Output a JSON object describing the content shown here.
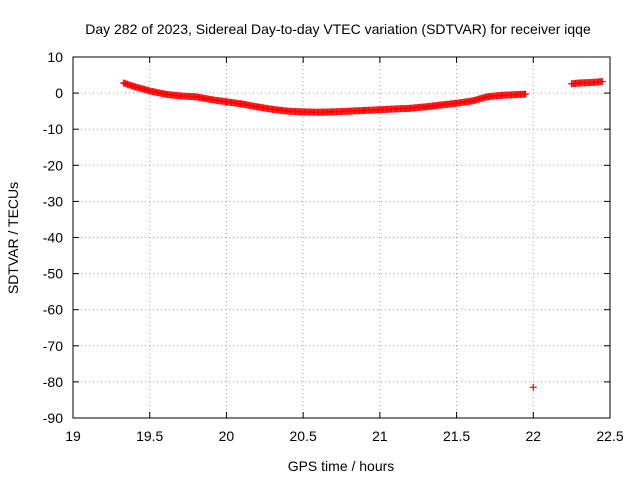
{
  "chart_data": {
    "type": "scatter",
    "title": "Day 282 of 2023, Sidereal Day-to-day VTEC variation (SDTVAR) for receiver iqqe",
    "xlabel": "GPS time / hours",
    "ylabel": "SDTVAR / TECUs",
    "xlim": [
      19,
      22.5
    ],
    "ylim": [
      -90,
      10
    ],
    "xticks": [
      "19",
      "19.5",
      "20",
      "20.5",
      "21",
      "21.5",
      "22",
      "22.5"
    ],
    "yticks": [
      "10",
      "0",
      "-10",
      "-20",
      "-30",
      "-40",
      "-50",
      "-60",
      "-70",
      "-80",
      "-90"
    ],
    "grid": true,
    "marker": "+",
    "color": "#ff0000",
    "series": [
      {
        "name": "SDTVAR",
        "segments": [
          {
            "x": [
              19.33,
              19.4,
              19.5,
              19.6,
              19.7,
              19.8,
              19.9,
              20.0,
              20.1,
              20.2,
              20.3,
              20.4,
              20.5,
              20.6,
              20.7,
              20.8,
              20.9,
              21.0,
              21.1,
              21.2,
              21.3,
              21.4,
              21.5,
              21.6,
              21.7,
              21.8,
              21.9,
              21.95
            ],
            "y": [
              2.8,
              1.8,
              0.6,
              -0.3,
              -0.8,
              -1.0,
              -1.8,
              -2.4,
              -3.0,
              -3.8,
              -4.5,
              -5.0,
              -5.2,
              -5.3,
              -5.2,
              -5.0,
              -4.8,
              -4.6,
              -4.4,
              -4.2,
              -3.8,
              -3.3,
              -2.8,
              -2.2,
              -1.0,
              -0.6,
              -0.4,
              -0.3
            ]
          },
          {
            "x": [
              22.0
            ],
            "y": [
              -81.5
            ]
          },
          {
            "x": [
              22.25,
              22.3,
              22.35,
              22.4,
              22.45
            ],
            "y": [
              2.6,
              2.8,
              2.9,
              3.0,
              3.2
            ]
          }
        ]
      }
    ]
  }
}
